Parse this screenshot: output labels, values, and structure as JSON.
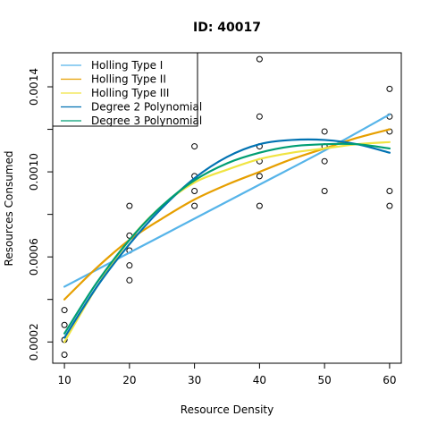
{
  "chart_data": {
    "type": "scatter",
    "title": "ID: 40017",
    "xlabel": "Resource Density",
    "ylabel": "Resources Consumed",
    "xlim": [
      8.2,
      61.8
    ],
    "ylim": [
      0.0001,
      0.00156
    ],
    "x_ticks": [
      10,
      20,
      30,
      40,
      50,
      60
    ],
    "x_tick_labels": [
      "10",
      "20",
      "30",
      "40",
      "50",
      "60"
    ],
    "y_ticks": [
      0.0002,
      0.0004,
      0.0006,
      0.0008,
      0.001,
      0.0012,
      0.0014
    ],
    "y_tick_labels": [
      "0.0002",
      "",
      "0.0006",
      "",
      "0.0010",
      "",
      "0.0014"
    ],
    "grid": false,
    "legend_position": "top-left",
    "points": [
      {
        "x": 10,
        "y": 0.00014
      },
      {
        "x": 10,
        "y": 0.00021
      },
      {
        "x": 10,
        "y": 0.00028
      },
      {
        "x": 10,
        "y": 0.00035
      },
      {
        "x": 20,
        "y": 0.00049
      },
      {
        "x": 20,
        "y": 0.00056
      },
      {
        "x": 20,
        "y": 0.00063
      },
      {
        "x": 20,
        "y": 0.0007
      },
      {
        "x": 20,
        "y": 0.00084
      },
      {
        "x": 30,
        "y": 0.00084
      },
      {
        "x": 30,
        "y": 0.00091
      },
      {
        "x": 30,
        "y": 0.00098
      },
      {
        "x": 30,
        "y": 0.00112
      },
      {
        "x": 40,
        "y": 0.00084
      },
      {
        "x": 40,
        "y": 0.00098
      },
      {
        "x": 40,
        "y": 0.00105
      },
      {
        "x": 40,
        "y": 0.00112
      },
      {
        "x": 40,
        "y": 0.00126
      },
      {
        "x": 40,
        "y": 0.00153
      },
      {
        "x": 50,
        "y": 0.00091
      },
      {
        "x": 50,
        "y": 0.00105
      },
      {
        "x": 50,
        "y": 0.00112
      },
      {
        "x": 50,
        "y": 0.00119
      },
      {
        "x": 60,
        "y": 0.00084
      },
      {
        "x": 60,
        "y": 0.00091
      },
      {
        "x": 60,
        "y": 0.00119
      },
      {
        "x": 60,
        "y": 0.00126
      },
      {
        "x": 60,
        "y": 0.00139
      }
    ],
    "series": [
      {
        "name": "Holling Type I",
        "color": "#56B4E9",
        "x": [
          10,
          20,
          30,
          40,
          50,
          60
        ],
        "y": [
          0.00046,
          0.00062,
          0.00078,
          0.00094,
          0.0011,
          0.00127
        ]
      },
      {
        "name": "Holling Type II",
        "color": "#E69F00",
        "x": [
          10,
          15,
          20,
          25,
          30,
          35,
          40,
          45,
          50,
          55,
          60
        ],
        "y": [
          0.0004,
          0.00055,
          0.00068,
          0.00078,
          0.00087,
          0.00094,
          0.001,
          0.00106,
          0.00111,
          0.00116,
          0.0012
        ]
      },
      {
        "name": "Holling Type III",
        "color": "#F0E442",
        "x": [
          10,
          15,
          20,
          25,
          30,
          35,
          40,
          45,
          50,
          55,
          60
        ],
        "y": [
          0.0002,
          0.00046,
          0.00068,
          0.00084,
          0.00095,
          0.00101,
          0.00106,
          0.00109,
          0.00111,
          0.00113,
          0.00114
        ]
      },
      {
        "name": "Degree 2 Polynomial",
        "color": "#0072B2",
        "x": [
          10,
          15,
          20,
          25,
          30,
          35,
          40,
          45,
          50,
          55,
          60
        ],
        "y": [
          0.00022,
          0.00046,
          0.00066,
          0.00083,
          0.00097,
          0.00107,
          0.00113,
          0.00115,
          0.00115,
          0.00113,
          0.00109
        ]
      },
      {
        "name": "Degree 3 Polynomial",
        "color": "#009E73",
        "x": [
          10,
          15,
          20,
          25,
          30,
          35,
          40,
          45,
          50,
          55,
          60
        ],
        "y": [
          0.00024,
          0.00048,
          0.00068,
          0.00084,
          0.00096,
          0.00104,
          0.00109,
          0.00112,
          0.00113,
          0.00113,
          0.00111
        ]
      }
    ]
  }
}
